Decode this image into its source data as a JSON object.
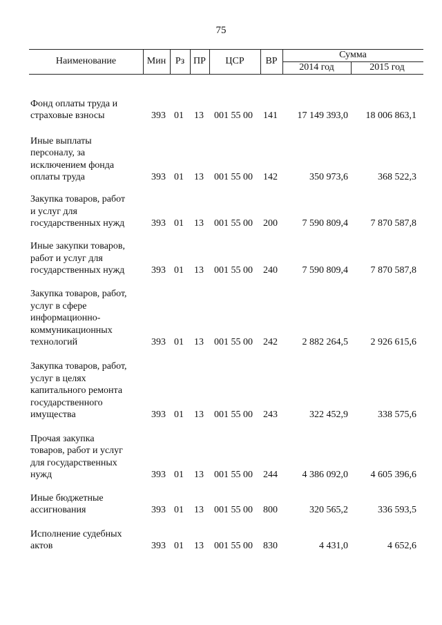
{
  "page_number": "75",
  "header": {
    "name": "Наименование",
    "min": "Мин",
    "rz": "Рз",
    "pr": "ПР",
    "csr": "ЦСР",
    "vr": "ВР",
    "sum": "Сумма",
    "y2014": "2014 год",
    "y2015": "2015 год"
  },
  "rows": [
    {
      "name": "Фонд оплаты труда и\nстраховые взносы",
      "min": "393",
      "rz": "01",
      "pr": "13",
      "csr": "001 55 00",
      "vr": "141",
      "y2014": "17 149 393,0",
      "y2015": "18 006 863,1"
    },
    {
      "name": "Иные выплаты\nперсоналу, за\nисключением фонда\nоплаты труда",
      "min": "393",
      "rz": "01",
      "pr": "13",
      "csr": "001 55 00",
      "vr": "142",
      "y2014": "350 973,6",
      "y2015": "368 522,3"
    },
    {
      "name": "Закупка товаров, работ\nи услуг для\nгосударственных нужд",
      "min": "393",
      "rz": "01",
      "pr": "13",
      "csr": "001 55 00",
      "vr": "200",
      "y2014": "7 590 809,4",
      "y2015": "7 870 587,8"
    },
    {
      "name": "Иные закупки товаров,\nработ и услуг для\nгосударственных нужд",
      "min": "393",
      "rz": "01",
      "pr": "13",
      "csr": "001 55 00",
      "vr": "240",
      "y2014": "7 590 809,4",
      "y2015": "7 870 587,8"
    },
    {
      "name": "Закупка товаров, работ,\nуслуг в сфере\nинформационно-\nкоммуникационных\nтехнологий",
      "min": "393",
      "rz": "01",
      "pr": "13",
      "csr": "001 55 00",
      "vr": "242",
      "y2014": "2 882 264,5",
      "y2015": "2 926 615,6"
    },
    {
      "name": "Закупка товаров, работ,\nуслуг в целях\nкапитального ремонта\nгосударственного\nимущества",
      "min": "393",
      "rz": "01",
      "pr": "13",
      "csr": "001 55 00",
      "vr": "243",
      "y2014": "322 452,9",
      "y2015": "338 575,6"
    },
    {
      "name": "Прочая закупка\nтоваров, работ и услуг\nдля государственных\nнужд",
      "min": "393",
      "rz": "01",
      "pr": "13",
      "csr": "001 55 00",
      "vr": "244",
      "y2014": "4 386 092,0",
      "y2015": "4 605 396,6"
    },
    {
      "name": "Иные бюджетные\nассигнования",
      "min": "393",
      "rz": "01",
      "pr": "13",
      "csr": "001 55 00",
      "vr": "800",
      "y2014": "320 565,2",
      "y2015": "336 593,5"
    },
    {
      "name": "Исполнение судебных\nактов",
      "min": "393",
      "rz": "01",
      "pr": "13",
      "csr": "001 55 00",
      "vr": "830",
      "y2014": "4 431,0",
      "y2015": "4 652,6"
    }
  ]
}
